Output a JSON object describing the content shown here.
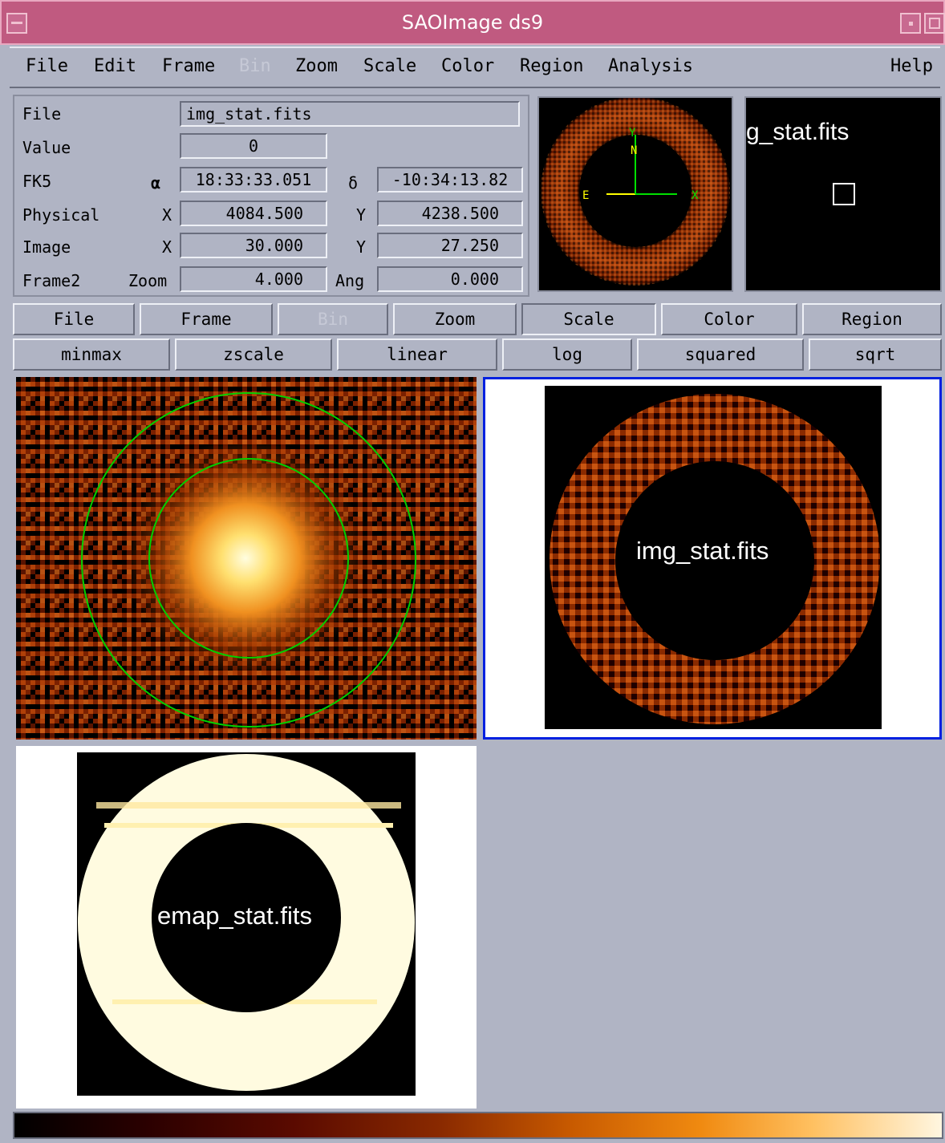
{
  "window": {
    "title": "SAOImage ds9"
  },
  "menu": {
    "file": "File",
    "edit": "Edit",
    "frame": "Frame",
    "bin": "Bin",
    "zoom": "Zoom",
    "scale": "Scale",
    "color": "Color",
    "region": "Region",
    "analysis": "Analysis",
    "help": "Help"
  },
  "info": {
    "file_label": "File",
    "file_value": "img_stat.fits",
    "value_label": "Value",
    "value_value": "0",
    "fk5_label": "FK5",
    "alpha_symbol": "α",
    "alpha_value": "18:33:33.051",
    "delta_symbol": "δ",
    "delta_value": "-10:34:13.82",
    "physical_label": "Physical",
    "physical_x_label": "X",
    "physical_x": "4084.500",
    "physical_y_label": "Y",
    "physical_y": "4238.500",
    "image_label": "Image",
    "image_x_label": "X",
    "image_x": "30.000",
    "image_y_label": "Y",
    "image_y": "27.250",
    "frame_label": "Frame2",
    "zoom_label": "Zoom",
    "zoom_value": "4.000",
    "ang_label": "Ang",
    "ang_value": "0.000"
  },
  "panner": {
    "n": "N",
    "e": "E",
    "x": "X",
    "y": "Y"
  },
  "magnifier": {
    "text": "g_stat.fits"
  },
  "buttonbar": {
    "main": [
      "File",
      "Frame",
      "Bin",
      "Zoom",
      "Scale",
      "Color",
      "Region"
    ],
    "scale": [
      "minmax",
      "zscale",
      "linear",
      "log",
      "squared",
      "sqrt"
    ]
  },
  "frames": {
    "frame2_name": "img_stat.fits",
    "frame3_name": "emap_stat.fits"
  },
  "colors": {
    "title_bar": "#c05a80",
    "chrome": "#b0b4c4",
    "region_green": "#00d000",
    "current_frame_border": "#0020e0"
  }
}
